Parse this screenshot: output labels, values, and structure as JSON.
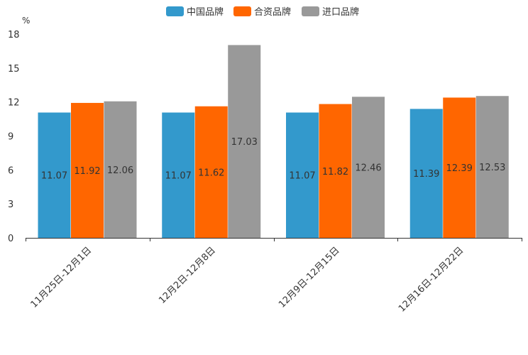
{
  "chart_data": {
    "type": "bar",
    "title": "",
    "xlabel": "",
    "ylabel": "%",
    "ylim": [
      0,
      18
    ],
    "yticks": [
      0,
      3,
      6,
      9,
      12,
      15,
      18
    ],
    "grid": false,
    "legend_position": "top-center",
    "categories": [
      "11月25日-12月1日",
      "12月2日-12月8日",
      "12月9日-12月15日",
      "12月16日-12月22日"
    ],
    "series": [
      {
        "name": "中国品牌",
        "color": "#3399CC",
        "values": [
          11.07,
          11.07,
          11.07,
          11.39
        ]
      },
      {
        "name": "合资品牌",
        "color": "#FF6600",
        "values": [
          11.92,
          11.62,
          11.82,
          12.39
        ]
      },
      {
        "name": "进口品牌",
        "color": "#999999",
        "values": [
          12.06,
          17.03,
          12.46,
          12.53
        ]
      }
    ]
  }
}
